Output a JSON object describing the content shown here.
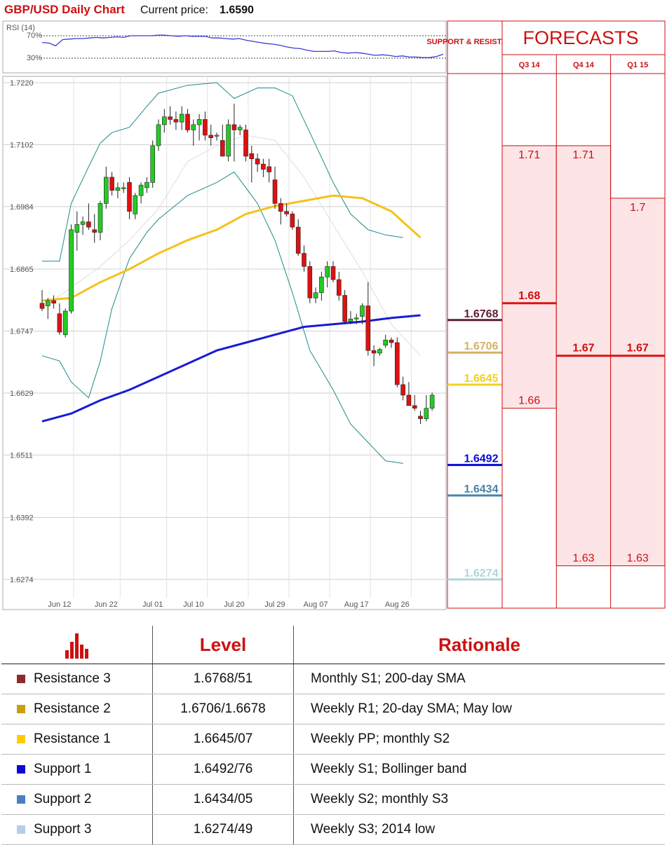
{
  "header": {
    "title": "GBP/USD Daily Chart",
    "price_label": "Current price:",
    "price_value": "1.6590"
  },
  "rsi": {
    "label": "RSI (14)",
    "level_high": "70%",
    "level_low": "30%",
    "values": [
      58,
      57,
      52,
      63,
      64,
      65,
      65,
      66,
      67,
      66,
      67,
      68,
      67,
      70,
      70,
      70,
      70,
      71,
      71,
      70,
      69,
      70,
      69,
      69,
      69,
      66,
      66,
      65,
      64,
      65,
      62,
      60,
      58,
      56,
      55,
      53,
      50,
      48,
      47,
      44,
      42,
      42,
      42,
      43,
      40,
      39,
      40,
      39,
      37,
      35,
      36,
      35,
      33,
      34,
      32,
      32,
      31,
      31,
      33,
      37
    ]
  },
  "sr_panel": {
    "heading": "SUPPORT & RESISTANCE",
    "levels": [
      {
        "label": "1.6768",
        "value": 1.6768,
        "color": "#5e1d33"
      },
      {
        "label": "1.6706",
        "value": 1.6706,
        "color": "#d4b068"
      },
      {
        "label": "1.6645",
        "value": 1.6645,
        "color": "#f2d21e"
      },
      {
        "label": "1.6492",
        "value": 1.6492,
        "color": "#0a0ad6"
      },
      {
        "label": "1.6434",
        "value": 1.6434,
        "color": "#4a82a8"
      },
      {
        "label": "1.6274",
        "value": 1.6274,
        "color": "#b2d4dc"
      }
    ]
  },
  "forecasts": {
    "title": "FORECASTS",
    "columns": [
      {
        "label": "Q3 14",
        "high": 1.71,
        "low": 1.66,
        "mid": 1.68,
        "high_label": "1.71",
        "low_label": "1.66",
        "mid_label": "1.68"
      },
      {
        "label": "Q4 14",
        "high": 1.71,
        "low": 1.63,
        "mid": 1.67,
        "high_label": "1.71",
        "low_label": "1.63",
        "mid_label": "1.67"
      },
      {
        "label": "Q1 15",
        "high": 1.7,
        "low": 1.63,
        "mid": 1.67,
        "high_label": "1.7",
        "low_label": "1.63",
        "mid_label": "1.67"
      }
    ]
  },
  "chart_data": {
    "type": "candlestick",
    "title": "GBP/USD Daily Chart",
    "ylim": [
      1.6274,
      1.722
    ],
    "y_ticks": [
      "1.7220",
      "1.7102",
      "1.6984",
      "1.6865",
      "1.6747",
      "1.6629",
      "1.6511",
      "1.6392",
      "1.6274"
    ],
    "x_ticks": [
      {
        "label": "Jun 12",
        "index": 3
      },
      {
        "label": "Jun 22",
        "index": 11
      },
      {
        "label": "Jul 01",
        "index": 19
      },
      {
        "label": "Jul 10",
        "index": 26
      },
      {
        "label": "Jul 20",
        "index": 33
      },
      {
        "label": "Jul 29",
        "index": 40
      },
      {
        "label": "Aug 07",
        "index": 47
      },
      {
        "label": "Aug 17",
        "index": 54
      },
      {
        "label": "Aug 26",
        "index": 61
      }
    ],
    "candles": [
      [
        1.68,
        1.6825,
        1.6785,
        1.679
      ],
      [
        1.6795,
        1.681,
        1.677,
        1.6805
      ],
      [
        1.6805,
        1.6815,
        1.679,
        1.68
      ],
      [
        1.678,
        1.68,
        1.674,
        1.6745
      ],
      [
        1.674,
        1.679,
        1.6735,
        1.6785
      ],
      [
        1.6785,
        1.695,
        1.678,
        1.694
      ],
      [
        1.6935,
        1.6975,
        1.69,
        1.695
      ],
      [
        1.695,
        1.6965,
        1.693,
        1.6955
      ],
      [
        1.6955,
        1.699,
        1.694,
        1.6945
      ],
      [
        1.694,
        1.697,
        1.6915,
        1.6935
      ],
      [
        1.6935,
        1.6995,
        1.692,
        1.699
      ],
      [
        1.699,
        1.706,
        1.698,
        1.704
      ],
      [
        1.704,
        1.705,
        1.7005,
        1.7015
      ],
      [
        1.7015,
        1.703,
        1.7,
        1.702
      ],
      [
        1.702,
        1.703,
        1.701,
        1.702
      ],
      [
        1.703,
        1.704,
        1.696,
        1.6975
      ],
      [
        1.697,
        1.701,
        1.696,
        1.7005
      ],
      [
        1.7005,
        1.703,
        1.699,
        1.7025
      ],
      [
        1.702,
        1.704,
        1.701,
        1.703
      ],
      [
        1.703,
        1.711,
        1.702,
        1.71
      ],
      [
        1.71,
        1.715,
        1.709,
        1.714
      ],
      [
        1.714,
        1.717,
        1.7125,
        1.7155
      ],
      [
        1.7155,
        1.7175,
        1.714,
        1.715
      ],
      [
        1.715,
        1.7165,
        1.713,
        1.7145
      ],
      [
        1.7145,
        1.7175,
        1.713,
        1.716
      ],
      [
        1.716,
        1.717,
        1.7125,
        1.713
      ],
      [
        1.713,
        1.715,
        1.71,
        1.714
      ],
      [
        1.714,
        1.716,
        1.711,
        1.715
      ],
      [
        1.715,
        1.7165,
        1.711,
        1.712
      ],
      [
        1.712,
        1.714,
        1.71,
        1.7115
      ],
      [
        1.712,
        1.7125,
        1.711,
        1.712
      ],
      [
        1.711,
        1.714,
        1.708,
        1.708
      ],
      [
        1.708,
        1.715,
        1.707,
        1.714
      ],
      [
        1.714,
        1.718,
        1.707,
        1.713
      ],
      [
        1.713,
        1.714,
        1.712,
        1.7135
      ],
      [
        1.713,
        1.714,
        1.707,
        1.708
      ],
      [
        1.7085,
        1.71,
        1.703,
        1.7075
      ],
      [
        1.7075,
        1.7085,
        1.705,
        1.7065
      ],
      [
        1.7065,
        1.7075,
        1.704,
        1.7055
      ],
      [
        1.706,
        1.7075,
        1.703,
        1.705
      ],
      [
        1.7035,
        1.706,
        1.698,
        1.699
      ],
      [
        1.699,
        1.7,
        1.695,
        1.6975
      ],
      [
        1.6975,
        1.699,
        1.6965,
        1.697
      ],
      [
        1.697,
        1.6975,
        1.694,
        1.6945
      ],
      [
        1.6945,
        1.696,
        1.689,
        1.6895
      ],
      [
        1.6895,
        1.691,
        1.686,
        1.687
      ],
      [
        1.687,
        1.688,
        1.68,
        1.681
      ],
      [
        1.681,
        1.683,
        1.68,
        1.682
      ],
      [
        1.682,
        1.686,
        1.6805,
        1.685
      ],
      [
        1.685,
        1.688,
        1.683,
        1.687
      ],
      [
        1.687,
        1.688,
        1.684,
        1.6845
      ],
      [
        1.6845,
        1.686,
        1.6805,
        1.6815
      ],
      [
        1.6815,
        1.6825,
        1.676,
        1.6765
      ],
      [
        1.6765,
        1.6785,
        1.676,
        1.677
      ],
      [
        1.677,
        1.678,
        1.676,
        1.6772
      ],
      [
        1.6775,
        1.68,
        1.676,
        1.6795
      ],
      [
        1.6795,
        1.684,
        1.67,
        1.671
      ],
      [
        1.671,
        1.672,
        1.668,
        1.6705
      ],
      [
        1.6705,
        1.6715,
        1.67,
        1.6712
      ],
      [
        1.672,
        1.674,
        1.6715,
        1.673
      ],
      [
        1.673,
        1.6735,
        1.6715,
        1.6725
      ],
      [
        1.6725,
        1.6735,
        1.664,
        1.6645
      ],
      [
        1.6645,
        1.666,
        1.6615,
        1.6625
      ],
      [
        1.6625,
        1.665,
        1.6605,
        1.6605
      ],
      [
        1.6605,
        1.6625,
        1.6595,
        1.66
      ],
      [
        1.6585,
        1.6595,
        1.657,
        1.658
      ],
      [
        1.658,
        1.6625,
        1.6575,
        1.66
      ],
      [
        1.66,
        1.663,
        1.6595,
        1.6625
      ]
    ],
    "sma_yellow": [
      [
        0,
        1.6805
      ],
      [
        5,
        1.681
      ],
      [
        10,
        1.684
      ],
      [
        15,
        1.6865
      ],
      [
        20,
        1.6895
      ],
      [
        25,
        1.692
      ],
      [
        30,
        1.694
      ],
      [
        35,
        1.697
      ],
      [
        40,
        1.6985
      ],
      [
        45,
        1.6995
      ],
      [
        50,
        1.7005
      ],
      [
        55,
        1.7
      ],
      [
        60,
        1.6975
      ],
      [
        65,
        1.6925
      ]
    ],
    "sma_blue": [
      [
        0,
        1.6575
      ],
      [
        5,
        1.659
      ],
      [
        10,
        1.6615
      ],
      [
        15,
        1.6635
      ],
      [
        20,
        1.666
      ],
      [
        25,
        1.6685
      ],
      [
        30,
        1.671
      ],
      [
        35,
        1.6725
      ],
      [
        40,
        1.674
      ],
      [
        45,
        1.6755
      ],
      [
        50,
        1.676
      ],
      [
        55,
        1.6765
      ],
      [
        60,
        1.6772
      ],
      [
        65,
        1.6777
      ]
    ],
    "boll_upper": [
      [
        0,
        1.688
      ],
      [
        3,
        1.688
      ],
      [
        5,
        1.699
      ],
      [
        8,
        1.706
      ],
      [
        10,
        1.7105
      ],
      [
        12,
        1.7125
      ],
      [
        15,
        1.7135
      ],
      [
        18,
        1.7175
      ],
      [
        20,
        1.72
      ],
      [
        25,
        1.7215
      ],
      [
        30,
        1.722
      ],
      [
        33,
        1.719
      ],
      [
        37,
        1.721
      ],
      [
        40,
        1.721
      ],
      [
        43,
        1.7195
      ],
      [
        46,
        1.7125
      ],
      [
        50,
        1.703
      ],
      [
        53,
        1.697
      ],
      [
        56,
        1.694
      ],
      [
        59,
        1.693
      ],
      [
        62,
        1.6925
      ]
    ],
    "boll_lower": [
      [
        0,
        1.67
      ],
      [
        3,
        1.669
      ],
      [
        5,
        1.665
      ],
      [
        8,
        1.662
      ],
      [
        10,
        1.669
      ],
      [
        12,
        1.679
      ],
      [
        15,
        1.6885
      ],
      [
        18,
        1.6935
      ],
      [
        20,
        1.696
      ],
      [
        25,
        1.7005
      ],
      [
        30,
        1.703
      ],
      [
        33,
        1.705
      ],
      [
        37,
        1.699
      ],
      [
        40,
        1.692
      ],
      [
        43,
        1.682
      ],
      [
        46,
        1.671
      ],
      [
        50,
        1.6635
      ],
      [
        53,
        1.657
      ],
      [
        56,
        1.6535
      ],
      [
        59,
        1.65
      ],
      [
        62,
        1.6495
      ]
    ],
    "boll_mid": [
      [
        0,
        1.679
      ],
      [
        5,
        1.683
      ],
      [
        10,
        1.687
      ],
      [
        15,
        1.692
      ],
      [
        20,
        1.698
      ],
      [
        25,
        1.707
      ],
      [
        30,
        1.71
      ],
      [
        35,
        1.712
      ],
      [
        40,
        1.711
      ],
      [
        45,
        1.704
      ],
      [
        50,
        1.695
      ],
      [
        55,
        1.686
      ],
      [
        60,
        1.676
      ],
      [
        65,
        1.67
      ]
    ]
  },
  "levels_table": {
    "headers": {
      "level": "Level",
      "rationale": "Rationale"
    },
    "rows": [
      {
        "name": "Resistance 3",
        "level": "1.6768/51",
        "rationale": "Monthly S1; 200-day SMA",
        "color": "#8b2b2b"
      },
      {
        "name": "Resistance 2",
        "level": "1.6706/1.6678",
        "rationale": "Weekly R1; 20-day SMA; May low",
        "color": "#c9a012"
      },
      {
        "name": "Resistance 1",
        "level": "1.6645/07",
        "rationale": "Weekly PP; monthly S2",
        "color": "#ffcc00"
      },
      {
        "name": "Support 1",
        "level": "1.6492/76",
        "rationale": "Weekly S1; Bollinger band",
        "color": "#0a0ad6"
      },
      {
        "name": "Support 2",
        "level": "1.6434/05",
        "rationale": "Weekly S2; monthly S3",
        "color": "#4a7fc0"
      },
      {
        "name": "Support 3",
        "level": "1.6274/49",
        "rationale": "Weekly S3; 2014 low",
        "color": "#b8cce8"
      }
    ]
  }
}
